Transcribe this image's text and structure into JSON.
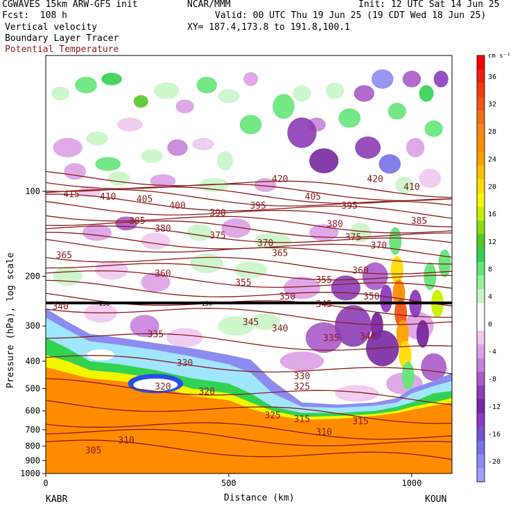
{
  "header": {
    "model": "CGWAVES 15km ARW-GFS init",
    "org": "NCAR/MMM",
    "init": "Init: 12 UTC Sat 14 Jun 25",
    "fcst": "Fcst:  108 h",
    "valid": "Valid: 00 UTC Thu 19 Jun 25 (19 CDT Wed 18 Jun 25)",
    "field1": "Vertical velocity",
    "field2": "Boundary Layer Tracer",
    "field3": "Potential Temperature",
    "xy": "XY= 187.4,173.8 to 191.8,100.1"
  },
  "colors": {
    "theta": "#8b1a1a",
    "tropopause_line": "#000000"
  },
  "chart_data": {
    "type": "heatmap",
    "xlabel": "Distance (km)",
    "ylabel": "Pressure (hPa), log scale",
    "xlim": [
      0,
      1110
    ],
    "ylim": [
      1000,
      33
    ],
    "x_ticks": [
      "0",
      "500",
      "1000"
    ],
    "y_ticks": [
      "100",
      "200",
      "300",
      "400",
      "500",
      "600",
      "700",
      "800",
      "900",
      "1000"
    ],
    "left_station": "KABR",
    "right_station": "KOUN",
    "colorbar": {
      "units": "cm s⁻¹",
      "levels": [
        38,
        36,
        34,
        32,
        30,
        28,
        26,
        24,
        22,
        20,
        18,
        16,
        14,
        12,
        10,
        8,
        6,
        4,
        2,
        0,
        -2,
        -4,
        -6,
        -8,
        -10,
        -12,
        -14,
        -16,
        -18,
        -20,
        -22
      ],
      "labels": [
        "36",
        "32",
        "28",
        "24",
        "20",
        "16",
        "12",
        "8",
        "4",
        "0",
        "-4",
        "-8",
        "-12",
        "-16",
        "-20"
      ],
      "colors": [
        "#ff0000",
        "#f41e0a",
        "#f03c0a",
        "#f05514",
        "#f06e14",
        "#f58714",
        "#ff8c00",
        "#ffa000",
        "#ffbe00",
        "#ffdc00",
        "#f5f500",
        "#c8f000",
        "#8cdc14",
        "#50c828",
        "#32d250",
        "#64e678",
        "#96f0a0",
        "#c8f5c8",
        "#ffffff",
        "#ffffff",
        "#f0c8f0",
        "#dca0e6",
        "#c882dc",
        "#aa5ac8",
        "#8c3cb4",
        "#7828a0",
        "#8c3cbe",
        "#7850d2",
        "#7870e6",
        "#8c8cf0",
        "#a0a0ff"
      ]
    },
    "theta_labels": [
      "305",
      "310",
      "310",
      "315",
      "315",
      "320",
      "320",
      "325",
      "325",
      "330",
      "330",
      "335",
      "335",
      "340",
      "340",
      "340",
      "345",
      "345",
      "350",
      "350",
      "355",
      "355",
      "360",
      "360",
      "365",
      "365",
      "370",
      "370",
      "375",
      "375",
      "380",
      "380",
      "385",
      "385",
      "390",
      "395",
      "395",
      "400",
      "405",
      "405",
      "410",
      "410",
      "415",
      "420",
      "420"
    ],
    "tropopause_labels": [
      "150",
      "150"
    ],
    "theta_contour_values": [
      305,
      310,
      315,
      320,
      325,
      330,
      335,
      340,
      345,
      350,
      355,
      360,
      365,
      370,
      375,
      380,
      385,
      390,
      395,
      400,
      405,
      410,
      415,
      420
    ]
  }
}
